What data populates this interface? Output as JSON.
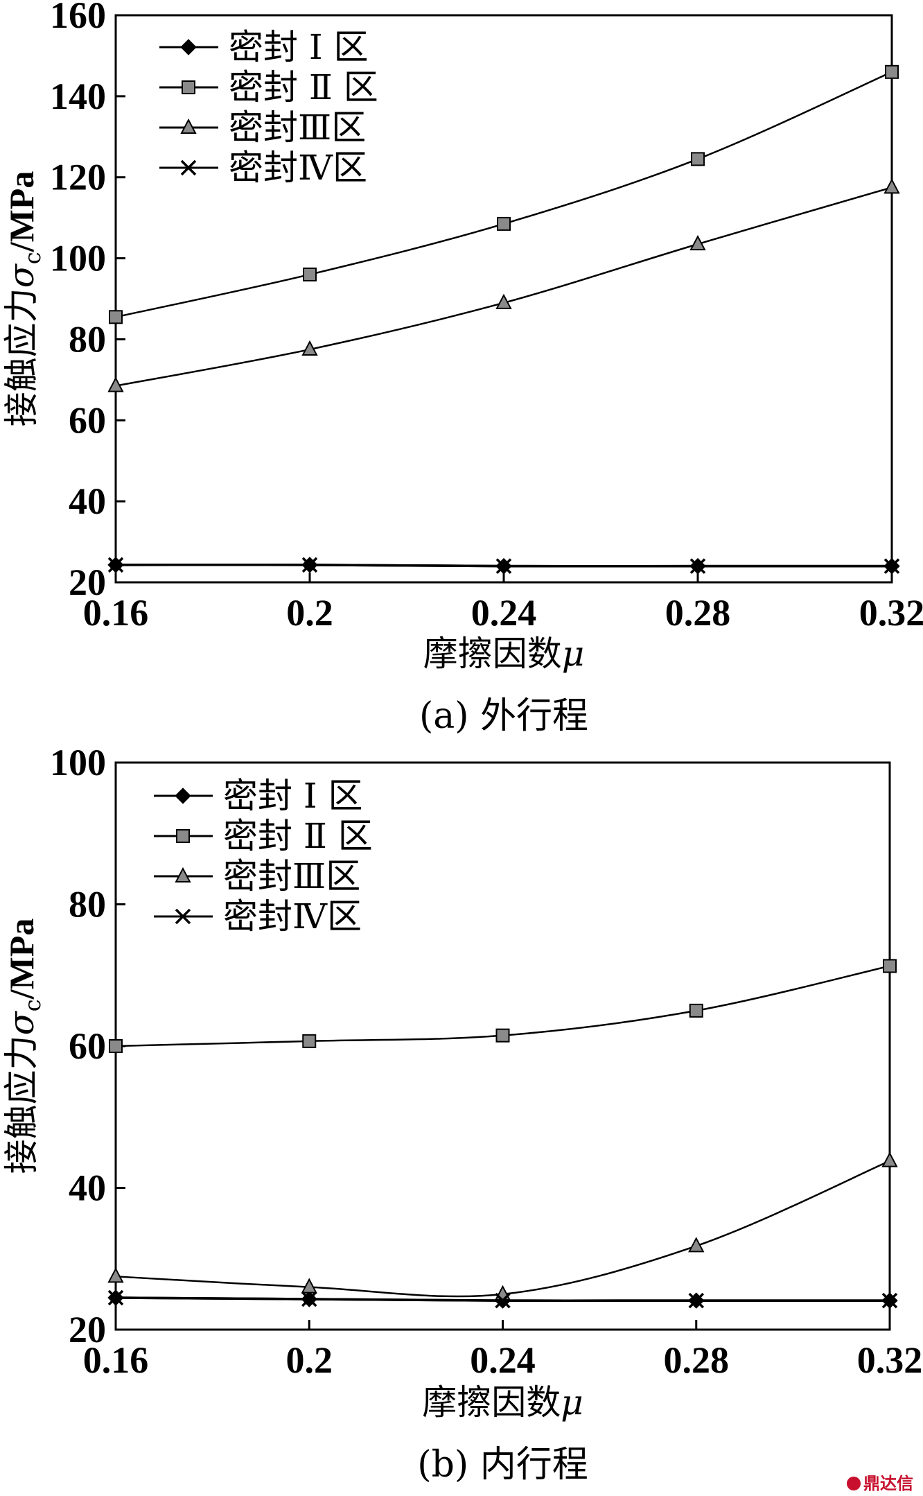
{
  "chart_data": [
    {
      "type": "line",
      "caption": "(a) 外行程",
      "ylabel_prefix": "接触应力",
      "ylabel_symbol": "σ",
      "ylabel_sub": "c",
      "ylabel_unit": "/MPa",
      "xlabel_text": "摩擦因数",
      "xlabel_symbol": "μ",
      "x": [
        0.16,
        0.2,
        0.24,
        0.28,
        0.32
      ],
      "x_tick_labels": [
        "0.16",
        "0.2",
        "0.24",
        "0.28",
        "0.32"
      ],
      "xlim": [
        0.16,
        0.32
      ],
      "ylim": [
        20,
        160
      ],
      "y_ticks": [
        20,
        40,
        60,
        80,
        100,
        120,
        140,
        160
      ],
      "grid": false,
      "legend_position": "top-left",
      "series": [
        {
          "name": "密封 Ⅰ 区",
          "marker": "diamond",
          "values": [
            24.3,
            24.3,
            24.0,
            24.0,
            24.0
          ]
        },
        {
          "name": "密封 Ⅱ 区",
          "marker": "square",
          "values": [
            85.5,
            96.0,
            108.5,
            124.5,
            146.0
          ]
        },
        {
          "name": "密封Ⅲ区",
          "marker": "triangle",
          "values": [
            68.5,
            77.5,
            89.0,
            103.5,
            117.5
          ]
        },
        {
          "name": "密封Ⅳ区",
          "marker": "x",
          "values": [
            24.3,
            24.3,
            24.0,
            24.0,
            24.0
          ]
        }
      ]
    },
    {
      "type": "line",
      "caption": "(b) 内行程",
      "ylabel_prefix": "接触应力",
      "ylabel_symbol": "σ",
      "ylabel_sub": "c",
      "ylabel_unit": "/MPa",
      "xlabel_text": "摩擦因数",
      "xlabel_symbol": "μ",
      "x": [
        0.16,
        0.2,
        0.24,
        0.28,
        0.32
      ],
      "x_tick_labels": [
        "0.16",
        "0.2",
        "0.24",
        "0.28",
        "0.32"
      ],
      "xlim": [
        0.16,
        0.32
      ],
      "ylim": [
        20,
        100
      ],
      "y_ticks": [
        20,
        40,
        60,
        80,
        100
      ],
      "grid": false,
      "legend_position": "top-left",
      "series": [
        {
          "name": "密封 Ⅰ 区",
          "marker": "diamond",
          "values": [
            24.5,
            24.3,
            24.1,
            24.1,
            24.1
          ]
        },
        {
          "name": "密封 Ⅱ 区",
          "marker": "square",
          "values": [
            60.0,
            60.7,
            61.5,
            65.0,
            71.3
          ]
        },
        {
          "name": "密封Ⅲ区",
          "marker": "triangle",
          "values": [
            27.5,
            26.0,
            25.0,
            31.8,
            43.8
          ]
        },
        {
          "name": "密封Ⅳ区",
          "marker": "x",
          "values": [
            24.5,
            24.3,
            24.1,
            24.1,
            24.1
          ]
        }
      ]
    }
  ],
  "watermark": "鼎达信"
}
